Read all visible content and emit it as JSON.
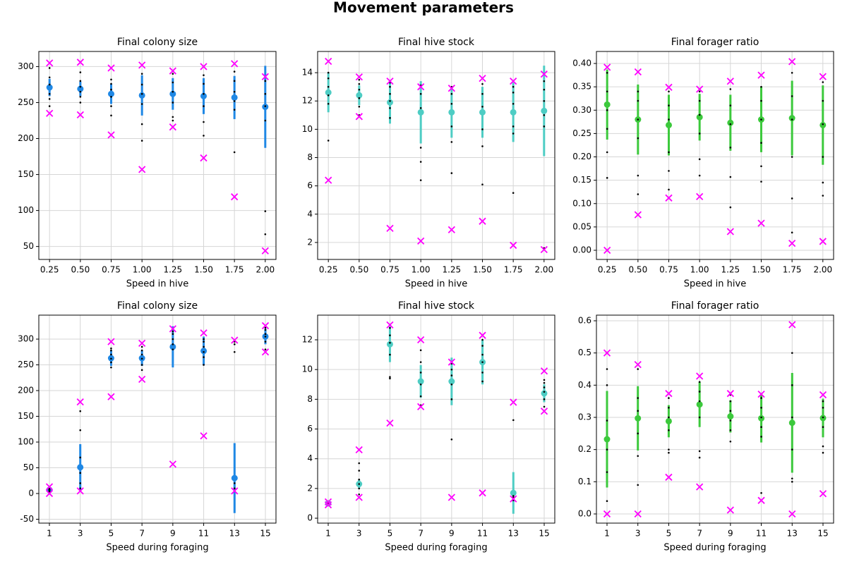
{
  "title": "Movement parameters",
  "chart_data": [
    {
      "type": "errorbar",
      "title": "Final colony size",
      "xlabel": "Speed in hive",
      "x": [
        0.25,
        0.5,
        0.75,
        1.0,
        1.25,
        1.5,
        1.75,
        2.0
      ],
      "xlim": [
        0.163,
        2.087
      ],
      "xticks": [
        {
          "value": 0.25,
          "label": "0.25"
        },
        {
          "value": 0.5,
          "label": "0.50"
        },
        {
          "value": 0.75,
          "label": "0.75"
        },
        {
          "value": 1.0,
          "label": "1.00"
        },
        {
          "value": 1.25,
          "label": "1.25"
        },
        {
          "value": 1.5,
          "label": "1.50"
        },
        {
          "value": 1.75,
          "label": "1.75"
        },
        {
          "value": 2.0,
          "label": "2.00"
        }
      ],
      "ylim": [
        32,
        321
      ],
      "yticks": [
        50,
        100,
        150,
        200,
        250,
        300
      ],
      "grid": true,
      "color": "#1f88e5",
      "extreme_color": "#ff00ff",
      "run_color": "#000000",
      "mean": [
        271,
        269,
        262,
        260,
        262,
        259,
        257,
        244
      ],
      "error": [
        12,
        10,
        14,
        28,
        22,
        25,
        30,
        57
      ],
      "max": [
        305,
        306,
        298,
        302,
        294,
        300,
        304,
        286
      ],
      "min": [
        235,
        233,
        205,
        157,
        216,
        173,
        119,
        44
      ],
      "runs": [
        [
          245,
          255,
          262,
          275,
          285,
          298
        ],
        [
          250,
          258,
          265,
          272,
          280,
          292
        ],
        [
          232,
          245,
          258,
          268,
          276,
          282
        ],
        [
          197,
          220,
          248,
          262,
          275,
          290
        ],
        [
          225,
          230,
          250,
          265,
          278,
          290
        ],
        [
          204,
          223,
          245,
          262,
          276,
          288
        ],
        [
          181,
          240,
          252,
          265,
          280,
          293
        ],
        [
          67,
          99,
          225,
          245,
          262,
          280
        ]
      ]
    },
    {
      "type": "errorbar",
      "title": "Final hive stock",
      "xlabel": "Speed in hive",
      "x": [
        0.25,
        0.5,
        0.75,
        1.0,
        1.25,
        1.5,
        1.75,
        2.0
      ],
      "xlim": [
        0.163,
        2.087
      ],
      "xticks": [
        {
          "value": 0.25,
          "label": "0.25"
        },
        {
          "value": 0.5,
          "label": "0.50"
        },
        {
          "value": 0.75,
          "label": "0.75"
        },
        {
          "value": 1.0,
          "label": "1.00"
        },
        {
          "value": 1.25,
          "label": "1.25"
        },
        {
          "value": 1.5,
          "label": "1.50"
        },
        {
          "value": 1.75,
          "label": "1.75"
        },
        {
          "value": 2.0,
          "label": "2.00"
        }
      ],
      "ylim": [
        0.8,
        15.5
      ],
      "yticks": [
        2,
        4,
        6,
        8,
        10,
        12,
        14
      ],
      "grid": true,
      "color": "#4ecdc4",
      "extreme_color": "#ff00ff",
      "run_color": "#000000",
      "mean": [
        12.6,
        12.4,
        11.9,
        11.2,
        11.2,
        11.2,
        11.2,
        11.3
      ],
      "error": [
        1.4,
        0.7,
        1.5,
        2.2,
        1.8,
        1.8,
        2.1,
        3.2
      ],
      "max": [
        14.8,
        13.7,
        13.4,
        13.0,
        12.9,
        13.6,
        13.4,
        13.9
      ],
      "min": [
        6.4,
        10.9,
        3.0,
        2.1,
        2.9,
        3.5,
        1.8,
        1.5
      ],
      "runs": [
        [
          9.2,
          11.8,
          12.4,
          13.0,
          13.6,
          14.0
        ],
        [
          11.0,
          11.6,
          12.2,
          12.8,
          13.2,
          13.5
        ],
        [
          10.8,
          11.5,
          12.0,
          12.5,
          13.0,
          13.3
        ],
        [
          6.4,
          7.7,
          8.7,
          11.5,
          12.5,
          13.1
        ],
        [
          6.9,
          9.1,
          10.2,
          11.8,
          12.5,
          13.0
        ],
        [
          6.1,
          8.8,
          10.0,
          11.6,
          12.5,
          13.2
        ],
        [
          5.5,
          9.7,
          10.2,
          11.8,
          12.6,
          13.0
        ],
        [
          1.6,
          10.2,
          11.0,
          12.0,
          12.8,
          13.4
        ]
      ]
    },
    {
      "type": "errorbar",
      "title": "Final forager ratio",
      "xlabel": "Speed in hive",
      "x": [
        0.25,
        0.5,
        0.75,
        1.0,
        1.25,
        1.5,
        1.75,
        2.0
      ],
      "xlim": [
        0.163,
        2.087
      ],
      "xticks": [
        {
          "value": 0.25,
          "label": "0.25"
        },
        {
          "value": 0.5,
          "label": "0.50"
        },
        {
          "value": 0.75,
          "label": "0.75"
        },
        {
          "value": 1.0,
          "label": "1.00"
        },
        {
          "value": 1.25,
          "label": "1.25"
        },
        {
          "value": 1.5,
          "label": "1.50"
        },
        {
          "value": 1.75,
          "label": "1.75"
        },
        {
          "value": 2.0,
          "label": "2.00"
        }
      ],
      "ylim": [
        -0.0196,
        0.4257
      ],
      "yticks": [
        {
          "value": 0,
          "label": "0.00"
        },
        {
          "value": 0.05,
          "label": "0.05"
        },
        {
          "value": 0.1,
          "label": "0.10"
        },
        {
          "value": 0.15,
          "label": "0.15"
        },
        {
          "value": 0.2,
          "label": "0.20"
        },
        {
          "value": 0.25,
          "label": "0.25"
        },
        {
          "value": 0.3,
          "label": "0.30"
        },
        {
          "value": 0.35,
          "label": "0.35"
        },
        {
          "value": 0.4,
          "label": "0.40"
        }
      ],
      "grid": true,
      "color": "#3cc93c",
      "extreme_color": "#ff00ff",
      "run_color": "#000000",
      "mean": [
        0.312,
        0.28,
        0.268,
        0.285,
        0.273,
        0.28,
        0.283,
        0.268
      ],
      "error": [
        0.075,
        0.075,
        0.065,
        0.05,
        0.06,
        0.07,
        0.08,
        0.085
      ],
      "max": [
        0.392,
        0.382,
        0.349,
        0.345,
        0.362,
        0.375,
        0.404,
        0.372
      ],
      "min": [
        0,
        0.076,
        0.112,
        0.115,
        0.04,
        0.058,
        0.015,
        0.019
      ],
      "runs": [
        [
          0.155,
          0.21,
          0.26,
          0.3,
          0.34,
          0.38
        ],
        [
          0.12,
          0.16,
          0.24,
          0.28,
          0.32,
          0.34
        ],
        [
          0.13,
          0.17,
          0.21,
          0.28,
          0.31,
          0.34
        ],
        [
          0.16,
          0.195,
          0.25,
          0.29,
          0.32,
          0.34
        ],
        [
          0.092,
          0.157,
          0.22,
          0.27,
          0.31,
          0.345
        ],
        [
          0.147,
          0.18,
          0.23,
          0.28,
          0.32,
          0.35
        ],
        [
          0.038,
          0.111,
          0.2,
          0.28,
          0.33,
          0.38
        ],
        [
          0.117,
          0.145,
          0.2,
          0.27,
          0.32,
          0.36
        ]
      ]
    },
    {
      "type": "errorbar",
      "title": "Final colony size",
      "xlabel": "Speed during foraging",
      "x": [
        1,
        3,
        5,
        7,
        9,
        11,
        13,
        15
      ],
      "xlim": [
        0.314,
        15.686
      ],
      "xticks": [
        1,
        3,
        5,
        7,
        9,
        11,
        13,
        15
      ],
      "ylim": [
        -57.5,
        346.6
      ],
      "yticks": [
        -50,
        0,
        50,
        100,
        150,
        200,
        250,
        300
      ],
      "grid": true,
      "color": "#1f88e5",
      "extreme_color": "#ff00ff",
      "run_color": "#000000",
      "mean": [
        7,
        51,
        263,
        263,
        285,
        277,
        30,
        305
      ],
      "error": [
        3,
        45,
        15,
        15,
        40,
        28,
        68,
        15
      ],
      "max": [
        13,
        178,
        295,
        292,
        320,
        312,
        298,
        326
      ],
      "min": [
        0,
        5,
        188,
        222,
        57,
        112,
        5,
        275
      ],
      "runs": [
        [
          3,
          5,
          7,
          8,
          10,
          12
        ],
        [
          10,
          20,
          40,
          70,
          123,
          160
        ],
        [
          245,
          255,
          262,
          270,
          278,
          282
        ],
        [
          240,
          250,
          262,
          270,
          278,
          285
        ],
        [
          280,
          290,
          300,
          310,
          315,
          320
        ],
        [
          250,
          265,
          275,
          285,
          295,
          300
        ],
        [
          5,
          10,
          20,
          275,
          290,
          295
        ],
        [
          280,
          295,
          305,
          310,
          318,
          322
        ]
      ]
    },
    {
      "type": "errorbar",
      "title": "Final hive stock",
      "xlabel": "Speed during foraging",
      "x": [
        1,
        3,
        5,
        7,
        9,
        11,
        13,
        15
      ],
      "xlim": [
        0.314,
        15.686
      ],
      "xticks": [
        1,
        3,
        5,
        7,
        9,
        11,
        13,
        15
      ],
      "ylim": [
        -0.33,
        13.66
      ],
      "yticks": [
        0,
        2,
        4,
        6,
        8,
        10,
        12
      ],
      "grid": true,
      "color": "#4ecdc4",
      "extreme_color": "#ff00ff",
      "run_color": "#000000",
      "mean": [
        1.0,
        2.3,
        11.7,
        9.2,
        9.2,
        10.5,
        1.7,
        8.4
      ],
      "error": [
        0.05,
        0.3,
        1.2,
        1.1,
        1.6,
        1.5,
        1.4,
        0.6
      ],
      "max": [
        1.1,
        4.6,
        13.0,
        12.0,
        10.5,
        12.3,
        7.8,
        9.9
      ],
      "min": [
        0.9,
        1.4,
        6.4,
        7.5,
        1.4,
        1.7,
        1.3,
        7.2
      ],
      "runs": [
        [
          0.9,
          1.0,
          1.05,
          1.1
        ],
        [
          1.6,
          2.0,
          2.3,
          2.6,
          3.2,
          3.7
        ],
        [
          9.4,
          9.5,
          11.0,
          11.8,
          12.3,
          12.8
        ],
        [
          7.6,
          8.2,
          9.0,
          9.8,
          10.5,
          11.3
        ],
        [
          5.3,
          8.0,
          9.0,
          9.6,
          10.0,
          10.4
        ],
        [
          9.2,
          9.8,
          10.5,
          11.0,
          11.6,
          12.0
        ],
        [
          1.2,
          1.3,
          1.4,
          1.5,
          6.6
        ],
        [
          7.5,
          8.0,
          8.5,
          8.8,
          9.1,
          9.3
        ]
      ]
    },
    {
      "type": "errorbar",
      "title": "Final forager ratio",
      "xlabel": "Speed during foraging",
      "x": [
        1,
        3,
        5,
        7,
        9,
        11,
        13,
        15
      ],
      "xlim": [
        0.314,
        15.686
      ],
      "xticks": [
        1,
        3,
        5,
        7,
        9,
        11,
        13,
        15
      ],
      "ylim": [
        -0.0285,
        0.6175
      ],
      "yticks": [
        {
          "value": 0,
          "label": "0.0"
        },
        0.1,
        0.2,
        0.3,
        0.4,
        0.5,
        0.6
      ],
      "grid": true,
      "color": "#3cc93c",
      "extreme_color": "#ff00ff",
      "run_color": "#000000",
      "mean": [
        0.232,
        0.297,
        0.288,
        0.34,
        0.303,
        0.297,
        0.283,
        0.298
      ],
      "error": [
        0.15,
        0.1,
        0.05,
        0.07,
        0.05,
        0.075,
        0.155,
        0.06
      ],
      "max": [
        0.5,
        0.464,
        0.374,
        0.428,
        0.374,
        0.372,
        0.588,
        0.37
      ],
      "min": [
        0,
        0,
        0.114,
        0.084,
        0.012,
        0.042,
        0,
        0.063
      ],
      "runs": [
        [
          0.04,
          0.13,
          0.2,
          0.29,
          0.4,
          0.45
        ],
        [
          0.09,
          0.18,
          0.25,
          0.32,
          0.36,
          0.45
        ],
        [
          0.19,
          0.2,
          0.26,
          0.3,
          0.33,
          0.36
        ],
        [
          0.175,
          0.195,
          0.3,
          0.35,
          0.38,
          0.41
        ],
        [
          0.225,
          0.26,
          0.29,
          0.32,
          0.35,
          0.37
        ],
        [
          0.065,
          0.24,
          0.27,
          0.3,
          0.33,
          0.36
        ],
        [
          0.1,
          0.11,
          0.2,
          0.3,
          0.4,
          0.5
        ],
        [
          0.19,
          0.21,
          0.27,
          0.3,
          0.33,
          0.35
        ]
      ]
    }
  ]
}
